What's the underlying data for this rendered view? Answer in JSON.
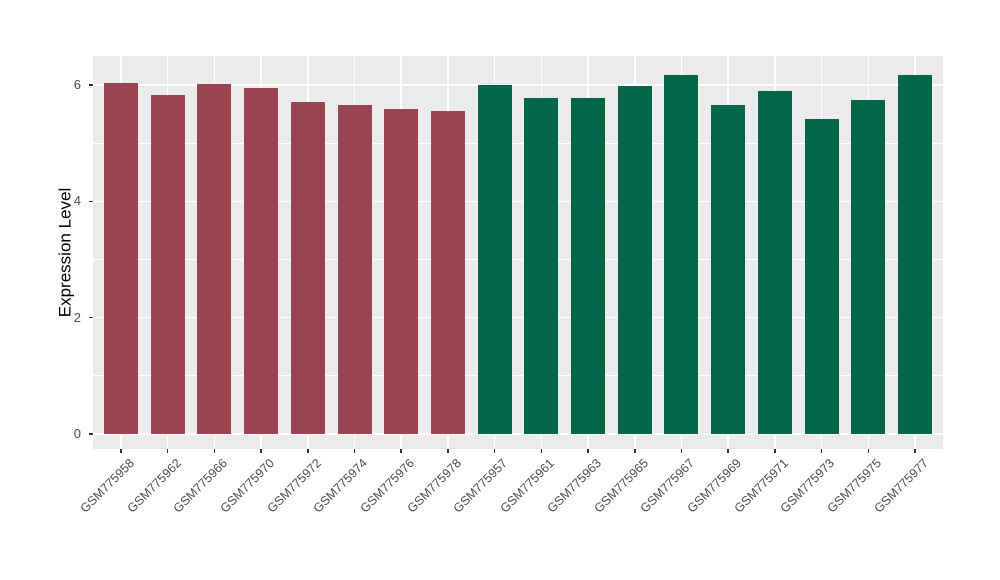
{
  "figure": {
    "background": "#FFFFFF"
  },
  "chart_data": {
    "type": "bar",
    "title": "",
    "xlabel": "",
    "ylabel": "Expression Level",
    "ylim": [
      0,
      6.5
    ],
    "yticks": [
      0,
      2,
      4,
      6
    ],
    "minor_yticks": [
      1,
      3,
      5
    ],
    "grid": true,
    "legend_position": "none",
    "panel_background": "#EBEBEB",
    "gridline_color": "#FFFFFF",
    "tick_color": "#333333",
    "axis_text_color": "#4D4D4D",
    "bar_color_group1": "#9C4351",
    "bar_color_group2": "#026649",
    "categories": [
      "GSM775958",
      "GSM775962",
      "GSM775966",
      "GSM775970",
      "GSM775972",
      "GSM775974",
      "GSM775976",
      "GSM775978",
      "GSM775957",
      "GSM775961",
      "GSM775963",
      "GSM775965",
      "GSM775967",
      "GSM775969",
      "GSM775971",
      "GSM775973",
      "GSM775975",
      "GSM775977"
    ],
    "values": [
      6.04,
      5.83,
      6.02,
      5.94,
      5.7,
      5.66,
      5.59,
      5.56,
      6.0,
      5.77,
      5.77,
      5.98,
      6.17,
      5.66,
      5.9,
      5.42,
      5.74,
      6.17
    ],
    "bar_colors": [
      "#9C4351",
      "#9C4351",
      "#9C4351",
      "#9C4351",
      "#9C4351",
      "#9C4351",
      "#9C4351",
      "#9C4351",
      "#026649",
      "#026649",
      "#026649",
      "#026649",
      "#026649",
      "#026649",
      "#026649",
      "#026649",
      "#026649",
      "#026649"
    ]
  }
}
